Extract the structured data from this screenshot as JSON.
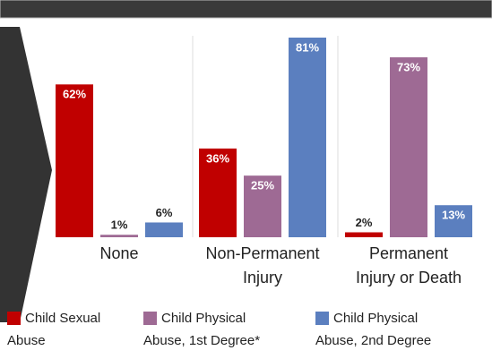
{
  "chart_data": {
    "type": "bar",
    "categories": [
      [
        "None"
      ],
      [
        "Non-Permanent",
        "Injury"
      ],
      [
        "Permanent",
        "Injury or Death"
      ]
    ],
    "series": [
      {
        "name": [
          "Child Sexual",
          "Abuse"
        ],
        "color": "#c00000",
        "values": [
          62,
          36,
          2
        ],
        "value_labels": [
          "62%",
          "36%",
          "2%"
        ]
      },
      {
        "name": [
          "Child Physical",
          "Abuse, 1st Degree*"
        ],
        "color": "#9e6a94",
        "values": [
          1,
          25,
          73
        ],
        "value_labels": [
          "1%",
          "25%",
          "73%"
        ]
      },
      {
        "name": [
          "Child Physical",
          "Abuse, 2nd Degree"
        ],
        "color": "#5b7fbf",
        "values": [
          6,
          81,
          13
        ],
        "value_labels": [
          "6%",
          "81%",
          "13%"
        ]
      }
    ]
  }
}
